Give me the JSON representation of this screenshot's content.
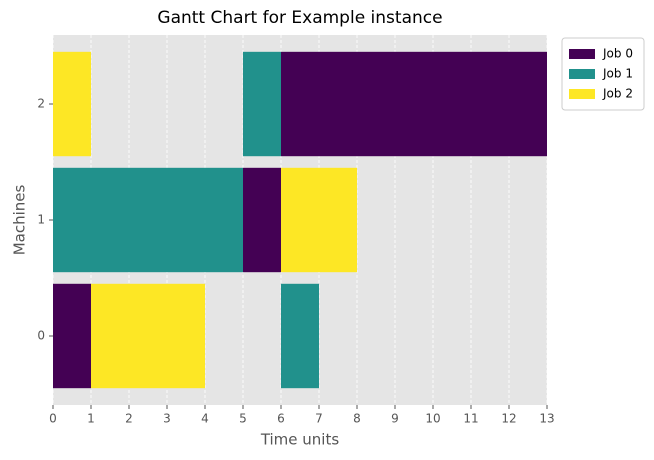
{
  "chart_data": {
    "type": "gantt",
    "title": "Gantt Chart for Example instance",
    "x_label": "Time units",
    "y_label": "Machines",
    "xlim": [
      0,
      13
    ],
    "xticks": [
      0,
      1,
      2,
      3,
      4,
      5,
      6,
      7,
      8,
      9,
      10,
      11,
      12,
      13
    ],
    "ylim": [
      -0.595,
      2.595
    ],
    "yticks": [
      0,
      1,
      2
    ],
    "grid": true,
    "legend": "outside upper right",
    "series": [
      {
        "name": "Job 0",
        "color": "#440154",
        "tasks": [
          {
            "machine": 0,
            "start": 0,
            "duration": 1
          },
          {
            "machine": 1,
            "start": 5,
            "duration": 1
          },
          {
            "machine": 2,
            "start": 6,
            "duration": 7
          }
        ]
      },
      {
        "name": "Job 1",
        "color": "#21918c",
        "tasks": [
          {
            "machine": 1,
            "start": 0,
            "duration": 5
          },
          {
            "machine": 2,
            "start": 5,
            "duration": 1
          },
          {
            "machine": 0,
            "start": 6,
            "duration": 1
          }
        ]
      },
      {
        "name": "Job 2",
        "color": "#fde725",
        "tasks": [
          {
            "machine": 2,
            "start": 0,
            "duration": 1
          },
          {
            "machine": 0,
            "start": 1,
            "duration": 3
          },
          {
            "machine": 1,
            "start": 6,
            "duration": 2
          }
        ]
      }
    ]
  }
}
